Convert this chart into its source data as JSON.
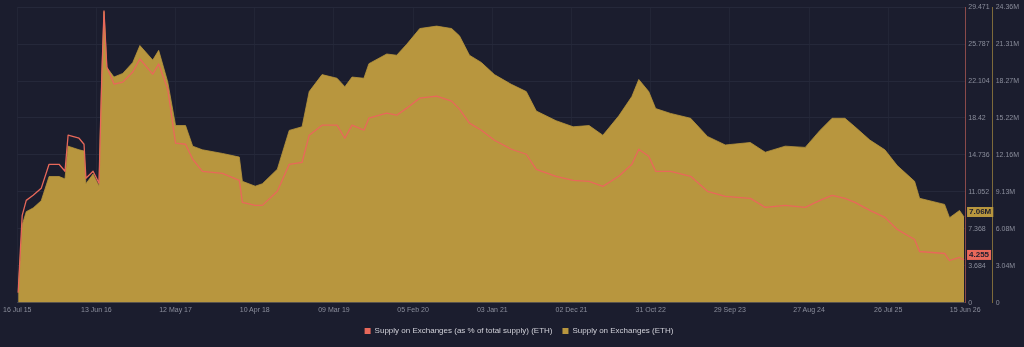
{
  "chart_data": {
    "type": "line",
    "legend": "bottom",
    "grid": true,
    "xlim": [
      "2015-07-16",
      "2026-06-15"
    ],
    "xticks": [
      {
        "value": "2015-07-16",
        "label": "16 Jul 15"
      },
      {
        "value": "2016-06-13",
        "label": "13 Jun 16"
      },
      {
        "value": "2017-05-12",
        "label": "12 May 17"
      },
      {
        "value": "2018-04-10",
        "label": "10 Apr 18"
      },
      {
        "value": "2019-03-09",
        "label": "09 Mar 19"
      },
      {
        "value": "2020-02-05",
        "label": "05 Feb 20"
      },
      {
        "value": "2021-01-03",
        "label": "03 Jan 21"
      },
      {
        "value": "2021-12-02",
        "label": "02 Dec 21"
      },
      {
        "value": "2022-10-31",
        "label": "31 Oct 22"
      },
      {
        "value": "2023-09-29",
        "label": "29 Sep 23"
      },
      {
        "value": "2024-08-27",
        "label": "27 Aug 24"
      },
      {
        "value": "2025-07-26",
        "label": "26 Jul 25"
      },
      {
        "value": "2026-06-15",
        "label": "15 Jun 26"
      }
    ],
    "ylim": [
      0,
      29.471
    ],
    "yticks": [
      0,
      3.684,
      7.368,
      11.052,
      14.736,
      18.42,
      22.104,
      25.787,
      29.471
    ],
    "y2lim": [
      0,
      24360000
    ],
    "y2ticks": [
      0,
      {
        "value": 3040000,
        "label": "3.04M"
      },
      {
        "value": 6080000,
        "label": "6.08M"
      },
      {
        "value": 9130000,
        "label": "9.13M"
      },
      {
        "value": 12160000,
        "label": "12.16M"
      },
      {
        "value": 15220000,
        "label": "15.22M"
      },
      {
        "value": 18270000,
        "label": "18.27M"
      },
      {
        "value": 21310000,
        "label": "21.31M"
      },
      {
        "value": 24360000,
        "label": "24.36M"
      }
    ],
    "x": [
      "2015-07-20",
      "2015-08-06",
      "2015-08-23",
      "2015-09-21",
      "2015-10-25",
      "2015-11-27",
      "2016-01-08",
      "2016-02-02",
      "2016-02-15",
      "2016-04-01",
      "2016-04-22",
      "2016-04-30",
      "2016-05-30",
      "2016-06-24",
      "2016-07-06",
      "2016-07-15",
      "2016-07-27",
      "2016-08-26",
      "2016-10-02",
      "2016-11-13",
      "2016-12-13",
      "2017-02-05",
      "2017-03-02",
      "2017-04-09",
      "2017-05-12",
      "2017-06-23",
      "2017-07-23",
      "2017-09-02",
      "2017-11-25",
      "2018-02-04",
      "2018-02-17",
      "2018-04-12",
      "2018-05-12",
      "2018-07-14",
      "2018-09-02",
      "2018-10-26",
      "2018-11-25",
      "2019-01-18",
      "2019-03-22",
      "2019-04-24",
      "2019-05-24",
      "2019-07-13",
      "2019-08-03",
      "2019-10-17",
      "2019-11-28",
      "2020-01-09",
      "2020-03-04",
      "2020-05-14",
      "2020-07-16",
      "2020-08-18",
      "2020-09-29",
      "2020-11-18",
      "2021-01-12",
      "2021-03-24",
      "2021-05-26",
      "2021-07-07",
      "2021-09-28",
      "2021-12-09",
      "2022-02-14",
      "2022-04-13",
      "2022-06-19",
      "2022-08-13",
      "2022-09-11",
      "2022-10-23",
      "2022-11-21",
      "2023-01-23",
      "2023-04-17",
      "2023-06-27",
      "2023-09-10",
      "2023-12-24",
      "2024-02-25",
      "2024-05-19",
      "2024-08-11",
      "2024-10-12",
      "2024-12-02",
      "2025-01-25",
      "2025-03-08",
      "2025-05-10",
      "2025-07-12",
      "2025-09-02",
      "2025-11-14",
      "2025-12-05",
      "2026-03-20",
      "2026-04-10",
      "2026-05-22",
      "2026-06-10"
    ],
    "series": [
      {
        "name": "Supply on Exchanges (as % of total supply) (ETH)",
        "type": "line",
        "axis": "y",
        "color": "#e8685a",
        "values": [
          1.0,
          8.7,
          10.2,
          10.7,
          11.4,
          13.8,
          13.8,
          13.1,
          16.7,
          16.4,
          15.8,
          12.4,
          13.1,
          11.9,
          22.8,
          29.1,
          23.5,
          21.8,
          22.0,
          23.0,
          24.3,
          22.8,
          23.8,
          21.3,
          15.9,
          15.8,
          14.3,
          13.1,
          12.9,
          12.2,
          10.0,
          9.7,
          9.7,
          11.1,
          13.8,
          14.0,
          16.7,
          17.7,
          17.7,
          16.4,
          17.7,
          17.2,
          18.4,
          18.9,
          18.7,
          19.4,
          20.4,
          20.6,
          20.1,
          19.3,
          17.9,
          17.2,
          16.2,
          15.3,
          14.8,
          13.3,
          12.6,
          12.2,
          12.1,
          11.6,
          12.6,
          13.8,
          15.3,
          14.6,
          13.1,
          13.1,
          12.6,
          11.1,
          10.6,
          10.4,
          9.5,
          9.7,
          9.5,
          10.2,
          10.7,
          10.4,
          10.0,
          9.2,
          8.5,
          7.3,
          6.3,
          5.1,
          4.9,
          4.2,
          4.5,
          4.255
        ],
        "value_labels": [
          null,
          null,
          null,
          null,
          null,
          null,
          null,
          null,
          null,
          null,
          null,
          null,
          null,
          null,
          null,
          null,
          null,
          null,
          null,
          null,
          null,
          null,
          null,
          null,
          null,
          null,
          null,
          null,
          null,
          null,
          null,
          null,
          null,
          null,
          null,
          null,
          null,
          null,
          null,
          null,
          null,
          null,
          null,
          null,
          null,
          null,
          null,
          null,
          null,
          null,
          null,
          null,
          null,
          null,
          null,
          null,
          null,
          null,
          null,
          null,
          null,
          null,
          null,
          null,
          null,
          null,
          null,
          null,
          null,
          null,
          null,
          null,
          null,
          null,
          null,
          null,
          null,
          null,
          null,
          null,
          null,
          null,
          null,
          null,
          null,
          "4.255"
        ]
      },
      {
        "name": "Supply on Exchanges (ETH)",
        "type": "area",
        "axis": "y2",
        "color": "#b8963e",
        "values": [
          800000,
          6400000,
          7500000,
          7800000,
          8400000,
          10400000,
          10400000,
          10200000,
          12900000,
          12600000,
          12500000,
          9800000,
          10600000,
          9600000,
          18900000,
          24000000,
          19400000,
          18600000,
          18900000,
          19800000,
          21200000,
          20000000,
          20800000,
          18200000,
          14600000,
          14600000,
          12900000,
          12600000,
          12300000,
          12000000,
          10000000,
          9600000,
          9800000,
          11000000,
          14200000,
          14500000,
          17400000,
          18800000,
          18500000,
          17800000,
          18600000,
          18500000,
          19700000,
          20500000,
          20400000,
          21300000,
          22600000,
          22800000,
          22600000,
          22000000,
          20400000,
          19800000,
          18800000,
          18000000,
          17400000,
          15800000,
          15000000,
          14500000,
          14600000,
          13800000,
          15400000,
          17000000,
          18400000,
          17400000,
          16000000,
          15600000,
          15200000,
          13700000,
          13000000,
          13200000,
          12400000,
          12900000,
          12800000,
          14200000,
          15200000,
          15200000,
          14500000,
          13400000,
          12600000,
          11300000,
          10000000,
          8600000,
          8100000,
          7000000,
          7600000,
          7060000
        ],
        "value_labels": [
          null,
          null,
          null,
          null,
          null,
          null,
          null,
          null,
          null,
          null,
          null,
          null,
          null,
          null,
          null,
          null,
          null,
          null,
          null,
          null,
          null,
          null,
          null,
          null,
          null,
          null,
          null,
          null,
          null,
          null,
          null,
          null,
          null,
          null,
          null,
          null,
          null,
          null,
          null,
          null,
          null,
          null,
          null,
          null,
          null,
          null,
          null,
          null,
          null,
          null,
          null,
          null,
          null,
          null,
          null,
          null,
          null,
          null,
          null,
          null,
          null,
          null,
          null,
          null,
          null,
          null,
          null,
          null,
          null,
          null,
          null,
          null,
          null,
          null,
          null,
          null,
          null,
          null,
          null,
          null,
          null,
          null,
          null,
          null,
          null,
          "7.06M"
        ]
      }
    ]
  }
}
